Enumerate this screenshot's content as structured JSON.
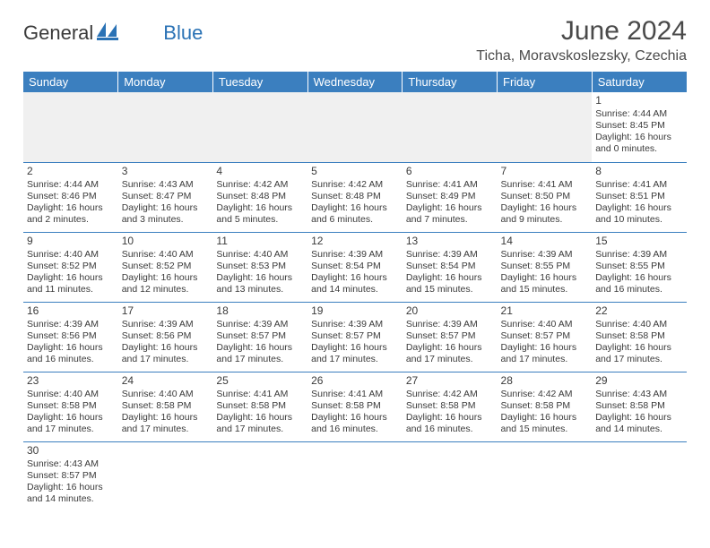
{
  "logo": {
    "general": "General",
    "blue": "Blue"
  },
  "title": "June 2024",
  "location": "Ticha, Moravskoslezsky, Czechia",
  "colors": {
    "header_bg": "#3b7fbf",
    "header_text": "#ffffff",
    "cell_border": "#3b7fbf",
    "empty_bg": "#f0f0f0",
    "text": "#3a3a3a",
    "logo_blue": "#2a72b5"
  },
  "weekdays": [
    "Sunday",
    "Monday",
    "Tuesday",
    "Wednesday",
    "Thursday",
    "Friday",
    "Saturday"
  ],
  "grid": [
    [
      null,
      null,
      null,
      null,
      null,
      null,
      {
        "d": "1",
        "sr": "Sunrise: 4:44 AM",
        "ss": "Sunset: 8:45 PM",
        "dl1": "Daylight: 16 hours",
        "dl2": "and 0 minutes."
      }
    ],
    [
      {
        "d": "2",
        "sr": "Sunrise: 4:44 AM",
        "ss": "Sunset: 8:46 PM",
        "dl1": "Daylight: 16 hours",
        "dl2": "and 2 minutes."
      },
      {
        "d": "3",
        "sr": "Sunrise: 4:43 AM",
        "ss": "Sunset: 8:47 PM",
        "dl1": "Daylight: 16 hours",
        "dl2": "and 3 minutes."
      },
      {
        "d": "4",
        "sr": "Sunrise: 4:42 AM",
        "ss": "Sunset: 8:48 PM",
        "dl1": "Daylight: 16 hours",
        "dl2": "and 5 minutes."
      },
      {
        "d": "5",
        "sr": "Sunrise: 4:42 AM",
        "ss": "Sunset: 8:48 PM",
        "dl1": "Daylight: 16 hours",
        "dl2": "and 6 minutes."
      },
      {
        "d": "6",
        "sr": "Sunrise: 4:41 AM",
        "ss": "Sunset: 8:49 PM",
        "dl1": "Daylight: 16 hours",
        "dl2": "and 7 minutes."
      },
      {
        "d": "7",
        "sr": "Sunrise: 4:41 AM",
        "ss": "Sunset: 8:50 PM",
        "dl1": "Daylight: 16 hours",
        "dl2": "and 9 minutes."
      },
      {
        "d": "8",
        "sr": "Sunrise: 4:41 AM",
        "ss": "Sunset: 8:51 PM",
        "dl1": "Daylight: 16 hours",
        "dl2": "and 10 minutes."
      }
    ],
    [
      {
        "d": "9",
        "sr": "Sunrise: 4:40 AM",
        "ss": "Sunset: 8:52 PM",
        "dl1": "Daylight: 16 hours",
        "dl2": "and 11 minutes."
      },
      {
        "d": "10",
        "sr": "Sunrise: 4:40 AM",
        "ss": "Sunset: 8:52 PM",
        "dl1": "Daylight: 16 hours",
        "dl2": "and 12 minutes."
      },
      {
        "d": "11",
        "sr": "Sunrise: 4:40 AM",
        "ss": "Sunset: 8:53 PM",
        "dl1": "Daylight: 16 hours",
        "dl2": "and 13 minutes."
      },
      {
        "d": "12",
        "sr": "Sunrise: 4:39 AM",
        "ss": "Sunset: 8:54 PM",
        "dl1": "Daylight: 16 hours",
        "dl2": "and 14 minutes."
      },
      {
        "d": "13",
        "sr": "Sunrise: 4:39 AM",
        "ss": "Sunset: 8:54 PM",
        "dl1": "Daylight: 16 hours",
        "dl2": "and 15 minutes."
      },
      {
        "d": "14",
        "sr": "Sunrise: 4:39 AM",
        "ss": "Sunset: 8:55 PM",
        "dl1": "Daylight: 16 hours",
        "dl2": "and 15 minutes."
      },
      {
        "d": "15",
        "sr": "Sunrise: 4:39 AM",
        "ss": "Sunset: 8:55 PM",
        "dl1": "Daylight: 16 hours",
        "dl2": "and 16 minutes."
      }
    ],
    [
      {
        "d": "16",
        "sr": "Sunrise: 4:39 AM",
        "ss": "Sunset: 8:56 PM",
        "dl1": "Daylight: 16 hours",
        "dl2": "and 16 minutes."
      },
      {
        "d": "17",
        "sr": "Sunrise: 4:39 AM",
        "ss": "Sunset: 8:56 PM",
        "dl1": "Daylight: 16 hours",
        "dl2": "and 17 minutes."
      },
      {
        "d": "18",
        "sr": "Sunrise: 4:39 AM",
        "ss": "Sunset: 8:57 PM",
        "dl1": "Daylight: 16 hours",
        "dl2": "and 17 minutes."
      },
      {
        "d": "19",
        "sr": "Sunrise: 4:39 AM",
        "ss": "Sunset: 8:57 PM",
        "dl1": "Daylight: 16 hours",
        "dl2": "and 17 minutes."
      },
      {
        "d": "20",
        "sr": "Sunrise: 4:39 AM",
        "ss": "Sunset: 8:57 PM",
        "dl1": "Daylight: 16 hours",
        "dl2": "and 17 minutes."
      },
      {
        "d": "21",
        "sr": "Sunrise: 4:40 AM",
        "ss": "Sunset: 8:57 PM",
        "dl1": "Daylight: 16 hours",
        "dl2": "and 17 minutes."
      },
      {
        "d": "22",
        "sr": "Sunrise: 4:40 AM",
        "ss": "Sunset: 8:58 PM",
        "dl1": "Daylight: 16 hours",
        "dl2": "and 17 minutes."
      }
    ],
    [
      {
        "d": "23",
        "sr": "Sunrise: 4:40 AM",
        "ss": "Sunset: 8:58 PM",
        "dl1": "Daylight: 16 hours",
        "dl2": "and 17 minutes."
      },
      {
        "d": "24",
        "sr": "Sunrise: 4:40 AM",
        "ss": "Sunset: 8:58 PM",
        "dl1": "Daylight: 16 hours",
        "dl2": "and 17 minutes."
      },
      {
        "d": "25",
        "sr": "Sunrise: 4:41 AM",
        "ss": "Sunset: 8:58 PM",
        "dl1": "Daylight: 16 hours",
        "dl2": "and 17 minutes."
      },
      {
        "d": "26",
        "sr": "Sunrise: 4:41 AM",
        "ss": "Sunset: 8:58 PM",
        "dl1": "Daylight: 16 hours",
        "dl2": "and 16 minutes."
      },
      {
        "d": "27",
        "sr": "Sunrise: 4:42 AM",
        "ss": "Sunset: 8:58 PM",
        "dl1": "Daylight: 16 hours",
        "dl2": "and 16 minutes."
      },
      {
        "d": "28",
        "sr": "Sunrise: 4:42 AM",
        "ss": "Sunset: 8:58 PM",
        "dl1": "Daylight: 16 hours",
        "dl2": "and 15 minutes."
      },
      {
        "d": "29",
        "sr": "Sunrise: 4:43 AM",
        "ss": "Sunset: 8:58 PM",
        "dl1": "Daylight: 16 hours",
        "dl2": "and 14 minutes."
      }
    ],
    [
      {
        "d": "30",
        "sr": "Sunrise: 4:43 AM",
        "ss": "Sunset: 8:57 PM",
        "dl1": "Daylight: 16 hours",
        "dl2": "and 14 minutes."
      },
      null,
      null,
      null,
      null,
      null,
      null
    ]
  ]
}
